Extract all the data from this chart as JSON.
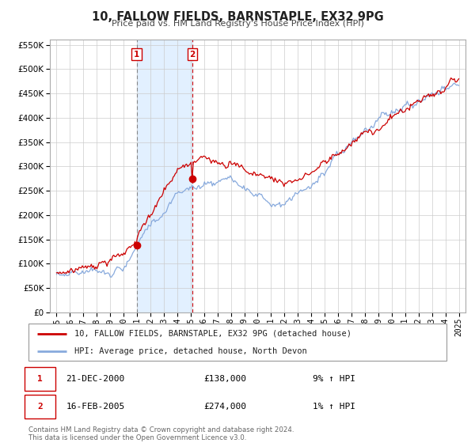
{
  "title": "10, FALLOW FIELDS, BARNSTAPLE, EX32 9PG",
  "subtitle": "Price paid vs. HM Land Registry's House Price Index (HPI)",
  "legend_line1": "10, FALLOW FIELDS, BARNSTAPLE, EX32 9PG (detached house)",
  "legend_line2": "HPI: Average price, detached house, North Devon",
  "sale1_date": "21-DEC-2000",
  "sale1_price": "£138,000",
  "sale1_hpi": "9% ↑ HPI",
  "sale1_year": 2000.97,
  "sale1_value": 138000,
  "sale2_date": "16-FEB-2005",
  "sale2_price": "£274,000",
  "sale2_hpi": "1% ↑ HPI",
  "sale2_year": 2005.12,
  "sale2_value": 274000,
  "price_line_color": "#cc0000",
  "hpi_line_color": "#88aadd",
  "shade_color": "#ddeeff",
  "footer": "Contains HM Land Registry data © Crown copyright and database right 2024.\nThis data is licensed under the Open Government Licence v3.0.",
  "yticks": [
    0,
    50000,
    100000,
    150000,
    200000,
    250000,
    300000,
    350000,
    400000,
    450000,
    500000,
    550000
  ],
  "xlim_start": 1994.5,
  "xlim_end": 2025.5,
  "ylim_max": 560000
}
